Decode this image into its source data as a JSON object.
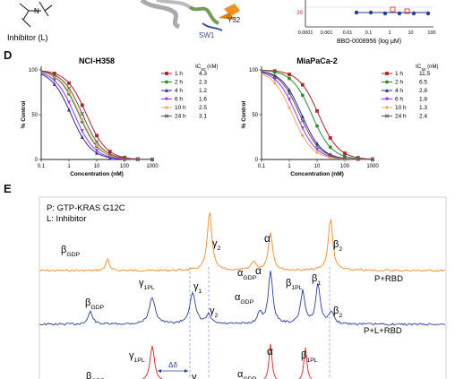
{
  "top": {
    "inhibitor_label": "Inhibitor (L)",
    "structure_label_y32": "Y32",
    "structure_label_sw1": "SW1",
    "mini_axis_xlabel": "BBO-0008956 (log μM)",
    "mini_ticks": [
      "0.0001",
      "0.001",
      "0.01",
      "0.1",
      "1",
      "10",
      "100"
    ],
    "mini_y_tick": "20"
  },
  "panel_d": {
    "label": "D",
    "charts": [
      {
        "type": "line",
        "title": "NCI-H358",
        "xlabel": "Concentration (nM)",
        "ylabel": "% Control",
        "x_scale": "log",
        "xlim": [
          0.1,
          1000
        ],
        "ylim": [
          0,
          100
        ],
        "x_ticks": [
          "0.1",
          "1",
          "10",
          "100",
          "1000"
        ],
        "y_ticks": [
          "0",
          "50",
          "100"
        ],
        "legend_header": "IC",
        "legend_header_sub": "50",
        "legend_header_unit": " (nM)",
        "series": [
          {
            "name": "1 h",
            "ic50": "4.3",
            "color": "#b22222",
            "marker": "square",
            "hill": 1.2,
            "x": [
              0.3,
              1,
              3,
              10,
              30,
              100,
              300,
              1000
            ]
          },
          {
            "name": "2 h",
            "ic50": "2.3",
            "color": "#2e8b2e",
            "marker": "circle",
            "hill": 1.2,
            "x": [
              0.3,
              1,
              3,
              10,
              30,
              100,
              300,
              1000
            ]
          },
          {
            "name": "4 h",
            "ic50": "1.2",
            "color": "#2a2aa0",
            "marker": "triangle",
            "hill": 1.2,
            "x": [
              0.3,
              1,
              3,
              10,
              30,
              100,
              300,
              1000
            ]
          },
          {
            "name": "6 h",
            "ic50": "1.6",
            "color": "#9b30ff",
            "marker": "down",
            "hill": 1.2,
            "x": [
              0.3,
              1,
              3,
              10,
              30,
              100,
              300,
              1000
            ]
          },
          {
            "name": "10 h",
            "ic50": "2.5",
            "color": "#f4a460",
            "marker": "diamond",
            "hill": 1.2,
            "x": [
              0.3,
              1,
              3,
              10,
              30,
              100,
              300,
              1000
            ]
          },
          {
            "name": "24 h",
            "ic50": "3.1",
            "color": "#555555",
            "marker": "x",
            "hill": 1.2,
            "x": [
              0.3,
              1,
              3,
              10,
              30,
              100,
              300,
              1000
            ]
          }
        ]
      },
      {
        "type": "line",
        "title": "MiaPaCa-2",
        "xlabel": "Concentration (nM)",
        "ylabel": "% Control",
        "x_scale": "log",
        "xlim": [
          0.1,
          1000
        ],
        "ylim": [
          0,
          100
        ],
        "x_ticks": [
          "0.1",
          "1",
          "10",
          "100",
          "1000"
        ],
        "y_ticks": [
          "0",
          "50",
          "100"
        ],
        "legend_header": "IC",
        "legend_header_sub": "50",
        "legend_header_unit": " (nM)",
        "series": [
          {
            "name": "1 h",
            "ic50": "11.5",
            "color": "#b22222",
            "marker": "square",
            "hill": 1.2,
            "x": [
              0.3,
              1,
              3,
              10,
              30,
              100,
              300,
              1000
            ]
          },
          {
            "name": "2 h",
            "ic50": "6.5",
            "color": "#2e8b2e",
            "marker": "circle",
            "hill": 1.2,
            "x": [
              0.3,
              1,
              3,
              10,
              30,
              100,
              300,
              1000
            ]
          },
          {
            "name": "4 h",
            "ic50": "2.8",
            "color": "#2a2aa0",
            "marker": "triangle",
            "hill": 1.2,
            "x": [
              0.3,
              1,
              3,
              10,
              30,
              100,
              300,
              1000
            ]
          },
          {
            "name": "6 h",
            "ic50": "1.8",
            "color": "#9b30ff",
            "marker": "down",
            "hill": 1.2,
            "x": [
              0.3,
              1,
              3,
              10,
              30,
              100,
              300,
              1000
            ]
          },
          {
            "name": "10 h",
            "ic50": "1.3",
            "color": "#f4a460",
            "marker": "diamond",
            "hill": 1.2,
            "x": [
              0.3,
              1,
              3,
              10,
              30,
              100,
              300,
              1000
            ]
          },
          {
            "name": "24 h",
            "ic50": "2.4",
            "color": "#555555",
            "marker": "x",
            "hill": 1.2,
            "x": [
              0.3,
              1,
              3,
              10,
              30,
              100,
              300,
              1000
            ]
          }
        ]
      }
    ]
  },
  "panel_e": {
    "label": "E",
    "legend_p": "P: GTP-KRAS G12C",
    "legend_l": "L: Inhibitor",
    "trace_orange_label": "P+RBD",
    "trace_blue_label": "P+L+RBD",
    "delta_label": "Δδ",
    "colors": {
      "orange": "#f28c28",
      "blue": "#2a3f9d",
      "red": "#e02020",
      "dash": "#8888cc"
    },
    "peak_labels": {
      "beta": "β",
      "alpha": "α",
      "gamma": "γ",
      "sub_gdp": "GDP",
      "sub_2": "2",
      "sub_1": "1",
      "sub_1pl": "1PL"
    }
  }
}
